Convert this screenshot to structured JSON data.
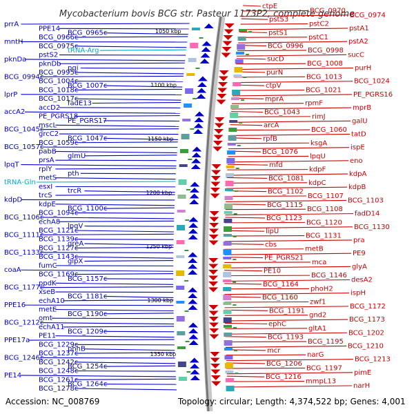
{
  "title": "Mycobacterium bovis BCG str. Pasteur 1173P2, complete genome",
  "footer": {
    "accession": "Accession: NC_008769",
    "info": "Topology: circular; Length: 4,374,522 bp; Genes: 4,001"
  },
  "colors": {
    "minus_strand": "#0000cc",
    "plus_strand": "#cc0000",
    "trna": "#00aacc",
    "backbone": "#888888"
  },
  "scale_ticks": [
    "1050 kbp",
    "1100 kbp",
    "1150 kbp",
    "1200 kbp",
    "1250 kbp",
    "1300 kbp",
    "1350 kbp"
  ],
  "left_genes": [
    "prrA",
    "PPE14",
    "BCG_0965c",
    "BCG_0966c",
    "mntH",
    "BCG_0975c",
    "tRNA-Arg",
    "pstS2",
    "pknDa",
    "pknDb",
    "pgi",
    "BCG_0995c",
    "BCG_0994c",
    "BCG_1004c",
    "BCG_1007c",
    "BCG_1018c",
    "lprP",
    "BCG_1017c",
    "fadE13",
    "accD2",
    "accA2",
    "PE_PGRS18",
    "PE_PGRS17",
    "mscL",
    "BCG_1045c",
    "grcC2",
    "BCG_1047c",
    "BCG_1059c",
    "BCG_1057c",
    "pabB",
    "glmU",
    "prsA",
    "lpqT",
    "rplY",
    "pth",
    "metS",
    "tRNA-Gln",
    "esxI",
    "trcR",
    "trcS",
    "kdpD",
    "kdpE",
    "BCG_1100c",
    "BCG_1094c",
    "BCG_1106c",
    "echA8",
    "lpqV",
    "BCG_1121c",
    "BCG_1111c",
    "BCG_1139c",
    "greA",
    "BCG_1127c",
    "BCG_1133c",
    "BCG_1143c",
    "glpX",
    "fumC",
    "coaA",
    "BCG_1169c",
    "BCG_1157c",
    "ppdK",
    "BCG_1177c",
    "xseB",
    "BCG_1181c",
    "echA10",
    "PPE16",
    "metE",
    "BCG_1190c",
    "omt",
    "BCG_1212c",
    "echA11",
    "BCG_1209c",
    "PE11",
    "PPE17a",
    "BCG_1229c",
    "phhB",
    "BCG_1237c",
    "BCG_1246c",
    "BCG_1242c",
    "BCG_1254c",
    "BCG_1248c",
    "PE14",
    "BCG_1261c",
    "BCG_1264c",
    "BCG_1278c"
  ],
  "right_genes": [
    "ctpE",
    "BCG_0970",
    "BCG_0974",
    "pstS3",
    "pstC2",
    "pstA1",
    "pstS1",
    "pstC1",
    "pstA2",
    "BCG_0996",
    "BCG_0998",
    "sucC",
    "sucD",
    "BCG_1008",
    "purH",
    "purN",
    "BCG_1013",
    "BCG_1024",
    "ctpV",
    "BCG_1021",
    "PE_PGRS16",
    "mprA",
    "rpmF",
    "mprB",
    "BCG_1043",
    "rimJ",
    "galU",
    "arcA",
    "BCG_1060",
    "tatD",
    "rpfB",
    "ksgA",
    "ispE",
    "BCG_1076",
    "lpqU",
    "eno",
    "mfd",
    "kdpF",
    "kdpA",
    "BCG_1081",
    "kdpC",
    "kdpB",
    "BCG_1102",
    "BCG_1107",
    "BCG_1103",
    "BCG_1115",
    "BCG_1108",
    "fadD14",
    "BCG_1123",
    "BCG_1120",
    "BCG_1130",
    "lipU",
    "BCG_1131",
    "pra",
    "cbs",
    "metB",
    "PE9",
    "PE_PGRS21",
    "mca",
    "glyA",
    "PE10",
    "BCG_1146",
    "desA2",
    "BCG_1164",
    "phoH2",
    "ispH",
    "BCG_1160",
    "zwf1",
    "BCG_1172",
    "BCG_1191",
    "gnd2",
    "BCG_1173",
    "ephC",
    "gltA1",
    "BCG_1202",
    "BCG_1193",
    "BCG_1195",
    "BCG_1210",
    "mcr",
    "narG",
    "BCG_1213",
    "BCG_1206",
    "BCG_1197",
    "pimE",
    "BCG_1216",
    "mmpL13",
    "narH"
  ]
}
